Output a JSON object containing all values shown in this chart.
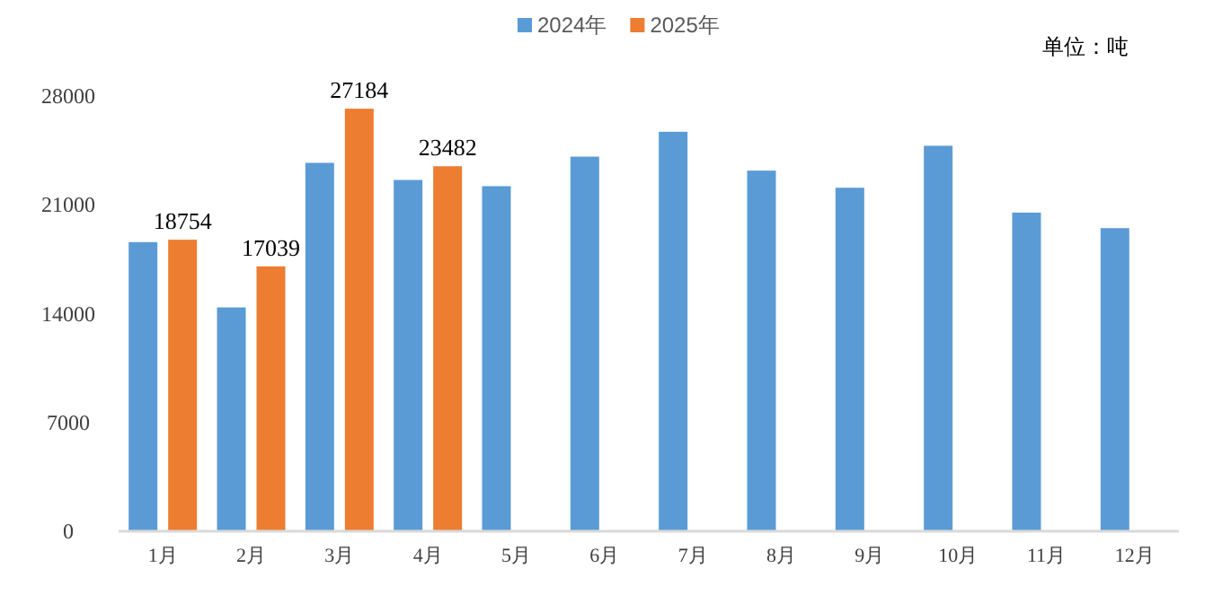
{
  "chart_data": {
    "type": "bar",
    "categories": [
      "1月",
      "2月",
      "3月",
      "4月",
      "5月",
      "6月",
      "7月",
      "8月",
      "9月",
      "10月",
      "11月",
      "12月"
    ],
    "series": [
      {
        "name": "2024年",
        "color": "#5b9bd5",
        "values": [
          18600,
          14400,
          23700,
          22600,
          22200,
          24100,
          25700,
          23200,
          22100,
          24800,
          20500,
          19500
        ]
      },
      {
        "name": "2025年",
        "color": "#ed7d31",
        "values": [
          18754,
          17039,
          27184,
          23482,
          null,
          null,
          null,
          null,
          null,
          null,
          null,
          null
        ],
        "value_labels": [
          "18754",
          "17039",
          "27184",
          "23482",
          null,
          null,
          null,
          null,
          null,
          null,
          null,
          null
        ]
      }
    ],
    "ylim": [
      0,
      28000
    ],
    "yticks": [
      0,
      7000,
      14000,
      21000,
      28000
    ],
    "legend": "top",
    "grid": false,
    "annotations": [
      "单位：吨"
    ]
  }
}
